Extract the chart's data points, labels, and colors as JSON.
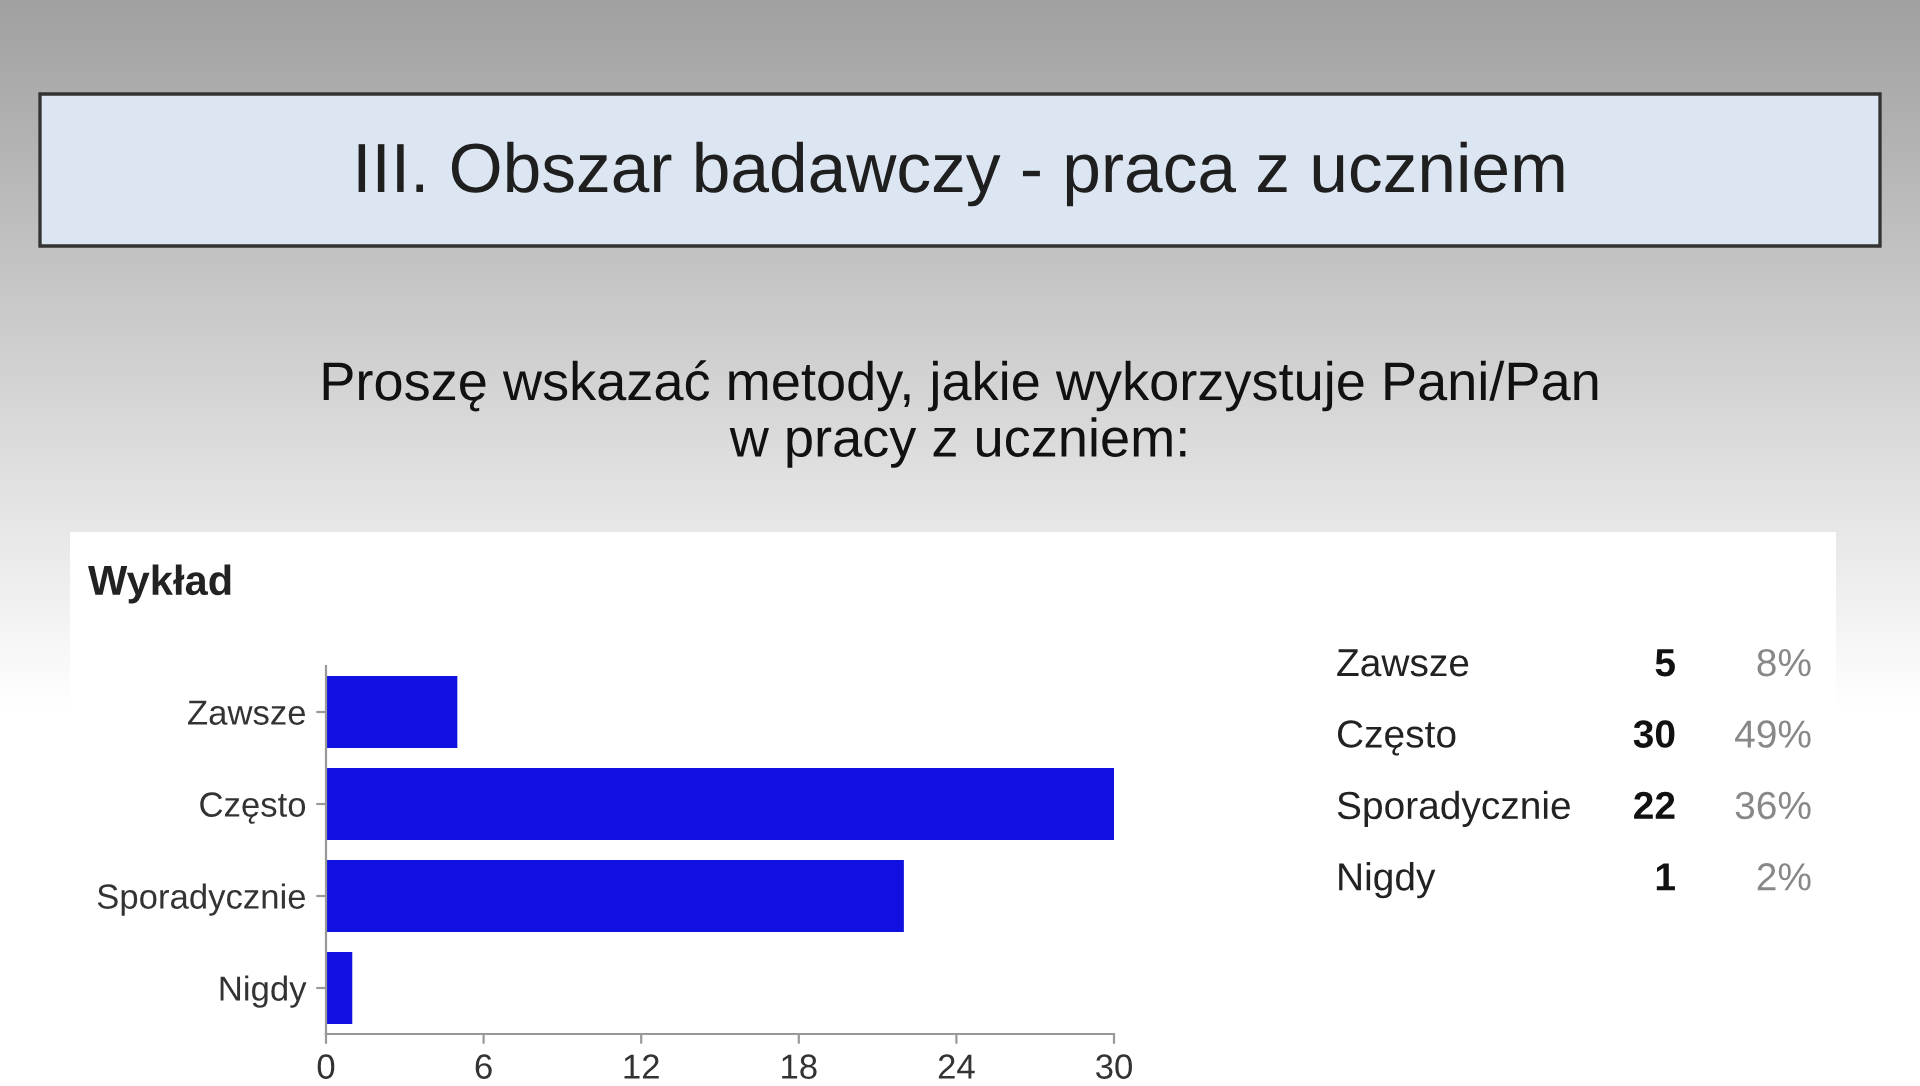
{
  "chart_data": {
    "type": "bar",
    "orientation": "horizontal",
    "title": "III. Obszar badawczy - praca z uczniem",
    "subtitle": "Proszę wskazać metody, jakie wykorzystuje Pani/Pan\nw pracy z uczniem:",
    "categories": [
      "Zawsze",
      "Często",
      "Sporadycznie",
      "Nigdy"
    ],
    "values": [
      5,
      30,
      22,
      1
    ],
    "color": "#1010e0",
    "xlim": [
      0,
      30
    ],
    "xticks": [
      0,
      6,
      12,
      18,
      24,
      30
    ],
    "grid": false,
    "legend": false,
    "annotations": [
      "Wykład",
      "Zawsze",
      "5",
      "8%",
      "Często",
      "30",
      "49%",
      "Sporadycznie",
      "22",
      "36%",
      "Nigdy",
      "1",
      "2%"
    ]
  }
}
